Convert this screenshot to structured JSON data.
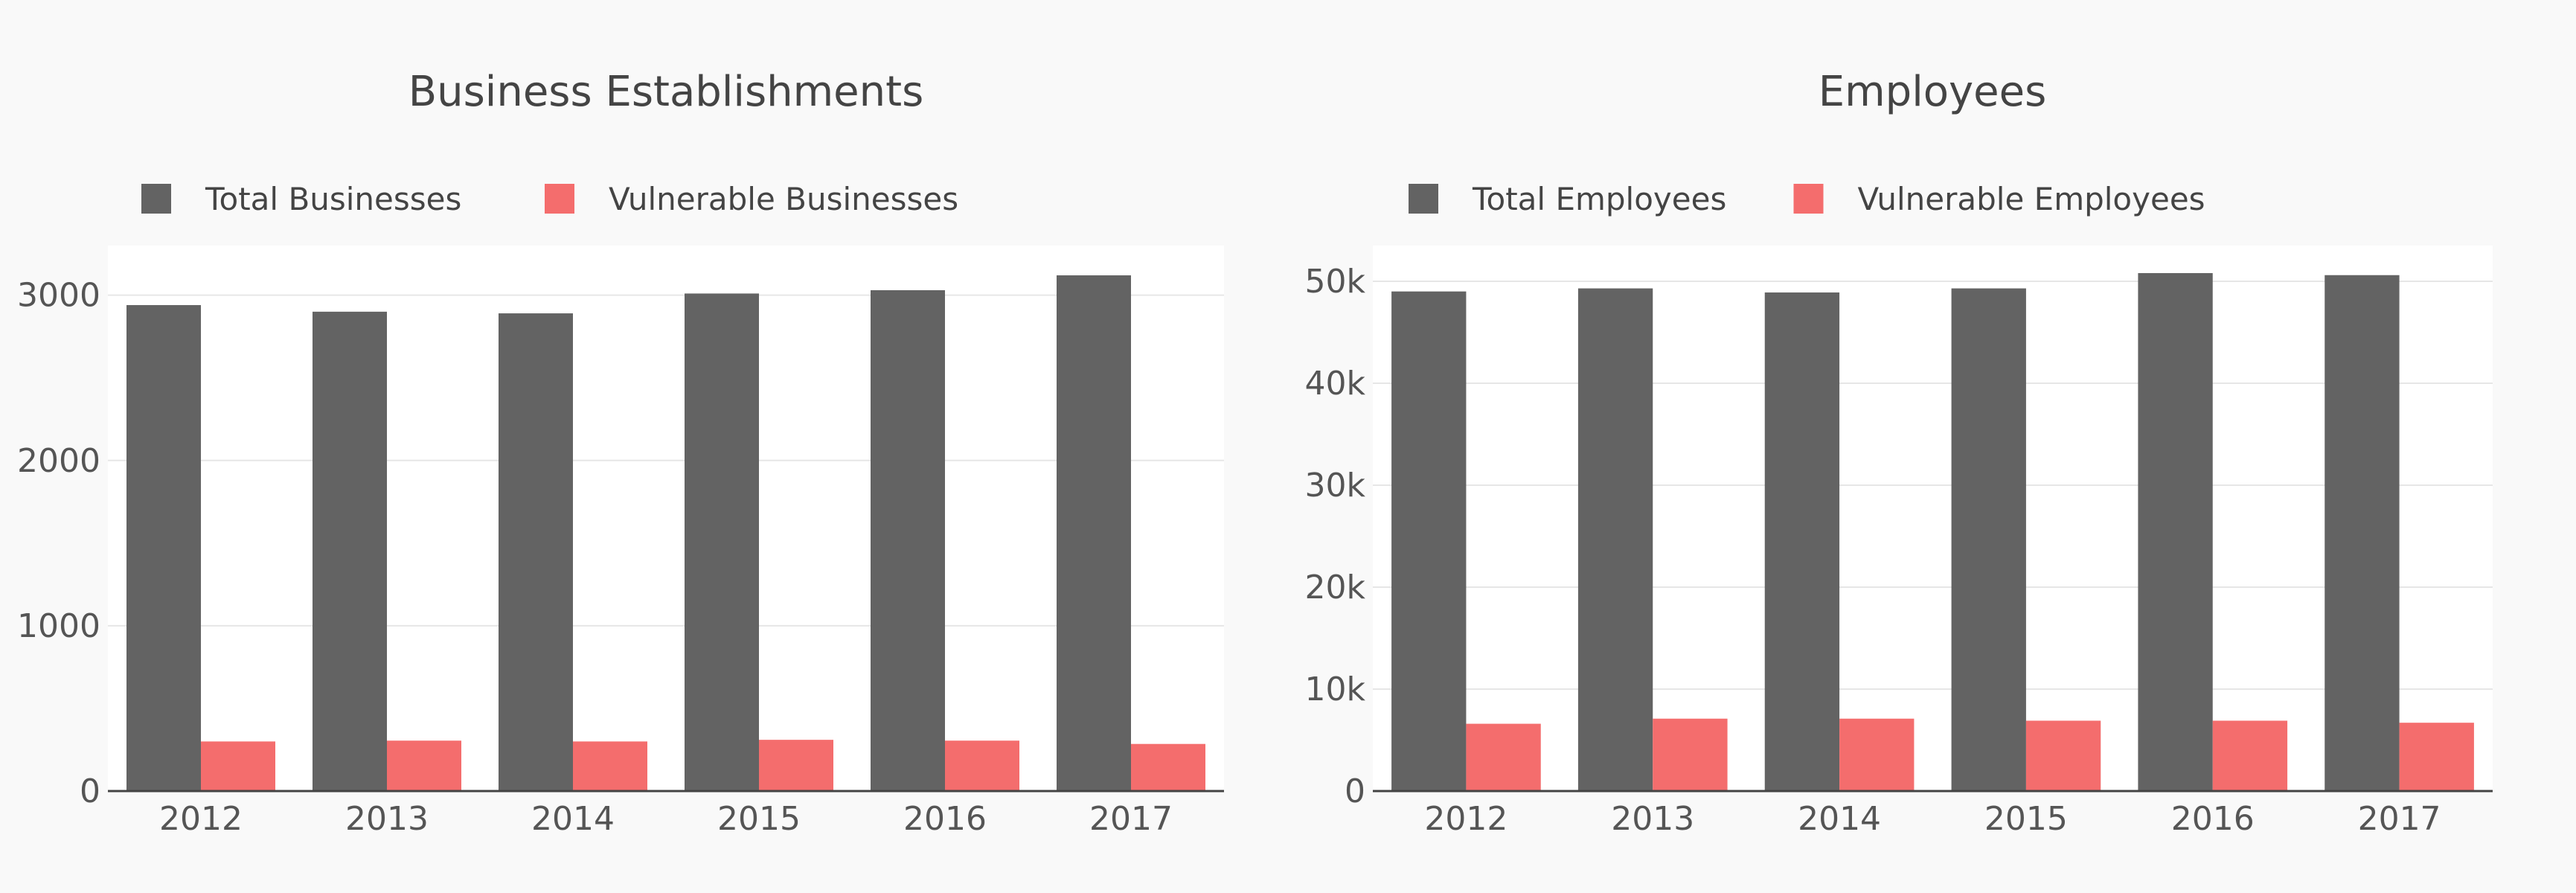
{
  "colors": {
    "total": "#636363",
    "vulnerable": "#f46d6d",
    "grid": "#e6e6e6",
    "axis": "#444444",
    "plot_bg": "#ffffff",
    "page_bg": "#f9f9f9"
  },
  "chart_data": [
    {
      "type": "bar",
      "title": "Business Establishments",
      "categories": [
        "2012",
        "2013",
        "2014",
        "2015",
        "2016",
        "2017"
      ],
      "series": [
        {
          "name": "Total Businesses",
          "values": [
            2940,
            2900,
            2890,
            3010,
            3030,
            3120
          ]
        },
        {
          "name": "Vulnerable Businesses",
          "values": [
            300,
            305,
            300,
            310,
            305,
            285
          ]
        }
      ],
      "xlabel": "",
      "ylabel": "",
      "ylim": [
        0,
        3300
      ],
      "yticks": [
        0,
        1000,
        2000,
        3000
      ],
      "ytick_labels": [
        "0",
        "1000",
        "2000",
        "3000"
      ],
      "grid": true,
      "legend": "top-left horizontal"
    },
    {
      "type": "bar",
      "title": "Employees",
      "categories": [
        "2012",
        "2013",
        "2014",
        "2015",
        "2016",
        "2017"
      ],
      "series": [
        {
          "name": "Total Employees",
          "values": [
            49000,
            49300,
            48900,
            49300,
            50800,
            50600
          ]
        },
        {
          "name": "Vulnerable Employees",
          "values": [
            6600,
            7100,
            7100,
            6900,
            6900,
            6700
          ]
        }
      ],
      "xlabel": "",
      "ylabel": "",
      "ylim": [
        0,
        53500
      ],
      "yticks": [
        0,
        10000,
        20000,
        30000,
        40000,
        50000
      ],
      "ytick_labels": [
        "0",
        "10k",
        "20k",
        "30k",
        "40k",
        "50k"
      ],
      "grid": true,
      "legend": "top-left horizontal"
    }
  ]
}
